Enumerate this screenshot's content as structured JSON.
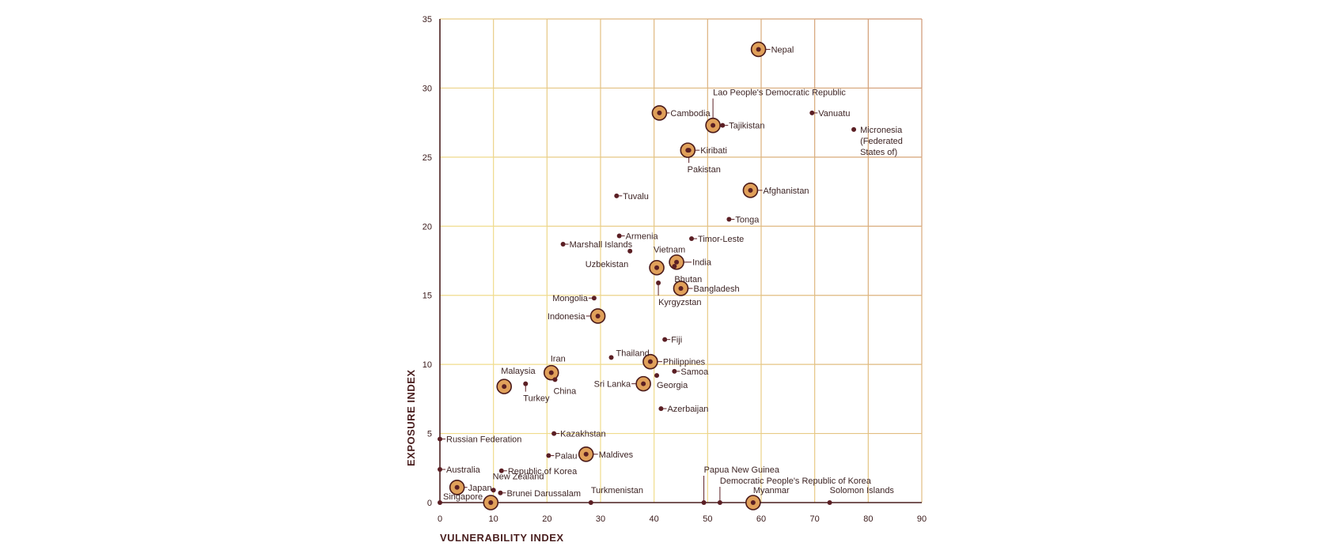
{
  "chart_data": {
    "type": "scatter",
    "title": "",
    "xlabel": "VULNERABILITY INDEX",
    "ylabel": "EXPOSURE INDEX",
    "xlim": [
      0,
      90
    ],
    "ylim": [
      0,
      35
    ],
    "x_ticks": [
      "0",
      "10",
      "20",
      "30",
      "40",
      "50",
      "60",
      "70",
      "80",
      "90"
    ],
    "y_ticks": [
      "0",
      "5",
      "10",
      "15",
      "20",
      "25",
      "30",
      "35"
    ],
    "grid": true,
    "colors": {
      "grid_light": "#f0dc8c",
      "grid_dark": "#c98a6e",
      "axis": "#4a1f1f",
      "marker_dot": "#5b1f24",
      "highlight_fill": "#e0a05a",
      "highlight_ring": "#4a1a1a"
    },
    "points": [
      {
        "name": "Nepal",
        "x": 59.5,
        "y": 32.8,
        "highlight": true
      },
      {
        "name": "Lao People's Democratic Republic",
        "x": 51.0,
        "y": 27.3,
        "highlight": true
      },
      {
        "name": "Cambodia",
        "x": 41.0,
        "y": 28.2,
        "highlight": true
      },
      {
        "name": "Tajikistan",
        "x": 52.8,
        "y": 27.3,
        "highlight": false
      },
      {
        "name": "Vanuatu",
        "x": 69.5,
        "y": 28.2,
        "highlight": false
      },
      {
        "name": "Micronesia (Federated States of)",
        "x": 77.3,
        "y": 27.0,
        "highlight": false
      },
      {
        "name": "Kiribati",
        "x": 46.3,
        "y": 25.5,
        "highlight": true
      },
      {
        "name": "Pakistan",
        "x": 46.5,
        "y": 25.5,
        "highlight": false
      },
      {
        "name": "Afghanistan",
        "x": 58.0,
        "y": 22.6,
        "highlight": true
      },
      {
        "name": "Tuvalu",
        "x": 33.0,
        "y": 22.2,
        "highlight": false
      },
      {
        "name": "Tonga",
        "x": 54.0,
        "y": 20.5,
        "highlight": false
      },
      {
        "name": "Armenia",
        "x": 33.5,
        "y": 19.3,
        "highlight": false
      },
      {
        "name": "Timor-Leste",
        "x": 47.0,
        "y": 19.1,
        "highlight": false
      },
      {
        "name": "Marshall Islands",
        "x": 23.0,
        "y": 18.7,
        "highlight": false
      },
      {
        "name": "Uzbekistan",
        "x": 35.5,
        "y": 18.2,
        "highlight": false
      },
      {
        "name": "Vietnam",
        "x": 40.5,
        "y": 17.0,
        "highlight": true
      },
      {
        "name": "India",
        "x": 44.2,
        "y": 17.4,
        "highlight": true
      },
      {
        "name": "Bhutan",
        "x": 43.8,
        "y": 17.1,
        "highlight": false
      },
      {
        "name": "Kyrgyzstan",
        "x": 40.8,
        "y": 15.9,
        "highlight": false
      },
      {
        "name": "Bangladesh",
        "x": 45.0,
        "y": 15.5,
        "highlight": true
      },
      {
        "name": "Mongolia",
        "x": 28.8,
        "y": 14.8,
        "highlight": false
      },
      {
        "name": "Indonesia",
        "x": 29.5,
        "y": 13.5,
        "highlight": true
      },
      {
        "name": "Fiji",
        "x": 42.0,
        "y": 11.8,
        "highlight": false
      },
      {
        "name": "Thailand",
        "x": 32.0,
        "y": 10.5,
        "highlight": false
      },
      {
        "name": "Philippines",
        "x": 39.3,
        "y": 10.2,
        "highlight": true
      },
      {
        "name": "Samoa",
        "x": 43.8,
        "y": 9.5,
        "highlight": false
      },
      {
        "name": "Iran",
        "x": 20.8,
        "y": 9.4,
        "highlight": true
      },
      {
        "name": "China",
        "x": 21.5,
        "y": 8.9,
        "highlight": false
      },
      {
        "name": "Malaysia",
        "x": 12.0,
        "y": 8.4,
        "highlight": true
      },
      {
        "name": "Turkey",
        "x": 16.0,
        "y": 8.6,
        "highlight": false
      },
      {
        "name": "Sri Lanka",
        "x": 38.0,
        "y": 8.6,
        "highlight": true
      },
      {
        "name": "Georgia",
        "x": 40.5,
        "y": 9.2,
        "highlight": false
      },
      {
        "name": "Azerbaijan",
        "x": 41.3,
        "y": 6.8,
        "highlight": false
      },
      {
        "name": "Kazakhstan",
        "x": 21.3,
        "y": 5.0,
        "highlight": false
      },
      {
        "name": "Russian Federation",
        "x": 0.0,
        "y": 4.6,
        "highlight": false
      },
      {
        "name": "Palau",
        "x": 20.3,
        "y": 3.4,
        "highlight": false
      },
      {
        "name": "Maldives",
        "x": 27.3,
        "y": 3.5,
        "highlight": true
      },
      {
        "name": "Australia",
        "x": 0.0,
        "y": 2.4,
        "highlight": false
      },
      {
        "name": "Republic of Korea",
        "x": 11.5,
        "y": 2.3,
        "highlight": false
      },
      {
        "name": "Japan",
        "x": 3.2,
        "y": 1.1,
        "highlight": true
      },
      {
        "name": "New Zealand",
        "x": 10.0,
        "y": 0.9,
        "highlight": false
      },
      {
        "name": "Brunei Darussalam",
        "x": 11.3,
        "y": 0.7,
        "highlight": false
      },
      {
        "name": "Singapore",
        "x": 0.0,
        "y": 0.0,
        "highlight": false
      },
      {
        "name": "",
        "x": 9.5,
        "y": 0.0,
        "highlight": true
      },
      {
        "name": "Turkmenistan",
        "x": 28.2,
        "y": 0.0,
        "highlight": false
      },
      {
        "name": "Papua New Guinea",
        "x": 49.3,
        "y": 0.0,
        "highlight": false
      },
      {
        "name": "Democratic People's Republic of Korea",
        "x": 52.3,
        "y": 0.0,
        "highlight": false
      },
      {
        "name": "Myanmar",
        "x": 58.5,
        "y": 0.0,
        "highlight": true
      },
      {
        "name": "Solomon Islands",
        "x": 72.8,
        "y": 0.0,
        "highlight": false
      }
    ]
  }
}
